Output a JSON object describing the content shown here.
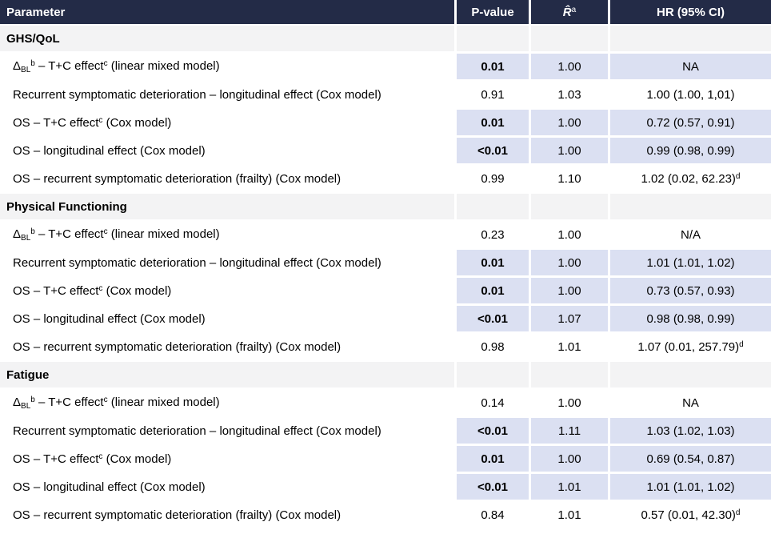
{
  "header": {
    "parameter": "Parameter",
    "p_value": "P-value",
    "r_hat": "R̂",
    "r_hat_sup": "a",
    "hr_ci": "HR (95% CI)"
  },
  "colors": {
    "header_bg": "#232b47",
    "header_text": "#ffffff",
    "section_bg": "#f3f3f4",
    "highlight_bg": "#dbe0f2",
    "body_bg": "#ffffff",
    "text": "#000000"
  },
  "sections": [
    {
      "title": "GHS/QoL",
      "rows": [
        {
          "param_parts": [
            [
              "Δ",
              "n"
            ],
            [
              "BL",
              "sub"
            ],
            [
              "b",
              "sup"
            ],
            [
              " – T+C effect",
              "n"
            ],
            [
              "c",
              "sup"
            ],
            [
              " (linear mixed model)",
              "n"
            ]
          ],
          "p": "0.01",
          "p_bold": true,
          "r": "1.00",
          "hr": "NA",
          "hr_sup": "",
          "highlight": true
        },
        {
          "param_parts": [
            [
              "Recurrent symptomatic deterioration – longitudinal effect (Cox model)",
              "n"
            ]
          ],
          "p": "0.91",
          "p_bold": false,
          "r": "1.03",
          "hr": "1.00 (1.00, 1,01)",
          "hr_sup": "",
          "highlight": false
        },
        {
          "param_parts": [
            [
              "OS – T+C effect",
              "n"
            ],
            [
              "c",
              "sup"
            ],
            [
              " (Cox model)",
              "n"
            ]
          ],
          "p": "0.01",
          "p_bold": true,
          "r": "1.00",
          "hr": "0.72 (0.57, 0.91)",
          "hr_sup": "",
          "highlight": true
        },
        {
          "param_parts": [
            [
              "OS – longitudinal effect (Cox model)",
              "n"
            ]
          ],
          "p": "<0.01",
          "p_bold": true,
          "r": "1.00",
          "hr": "0.99 (0.98, 0.99)",
          "hr_sup": "",
          "highlight": true
        },
        {
          "param_parts": [
            [
              "OS – recurrent symptomatic deterioration (frailty) (Cox model)",
              "n"
            ]
          ],
          "p": "0.99",
          "p_bold": false,
          "r": "1.10",
          "hr": "1.02 (0.02, 62.23)",
          "hr_sup": "d",
          "highlight": false
        }
      ]
    },
    {
      "title": "Physical Functioning",
      "rows": [
        {
          "param_parts": [
            [
              "Δ",
              "n"
            ],
            [
              "BL",
              "sub"
            ],
            [
              "b",
              "sup"
            ],
            [
              " – T+C effect",
              "n"
            ],
            [
              "c",
              "sup"
            ],
            [
              " (linear mixed model)",
              "n"
            ]
          ],
          "p": "0.23",
          "p_bold": false,
          "r": "1.00",
          "hr": "N/A",
          "hr_sup": "",
          "highlight": false
        },
        {
          "param_parts": [
            [
              "Recurrent symptomatic deterioration – longitudinal effect (Cox model)",
              "n"
            ]
          ],
          "p": "0.01",
          "p_bold": true,
          "r": "1.00",
          "hr": "1.01 (1.01, 1.02)",
          "hr_sup": "",
          "highlight": true
        },
        {
          "param_parts": [
            [
              "OS – T+C effect",
              "n"
            ],
            [
              "c",
              "sup"
            ],
            [
              " (Cox model)",
              "n"
            ]
          ],
          "p": "0.01",
          "p_bold": true,
          "r": "1.00",
          "hr": "0.73 (0.57, 0.93)",
          "hr_sup": "",
          "highlight": true
        },
        {
          "param_parts": [
            [
              "OS – longitudinal effect (Cox model)",
              "n"
            ]
          ],
          "p": "<0.01",
          "p_bold": true,
          "r": "1.07",
          "hr": "0.98 (0.98, 0.99)",
          "hr_sup": "",
          "highlight": true
        },
        {
          "param_parts": [
            [
              "OS – recurrent symptomatic deterioration (frailty) (Cox model)",
              "n"
            ]
          ],
          "p": "0.98",
          "p_bold": false,
          "r": "1.01",
          "hr": "1.07 (0.01, 257.79)",
          "hr_sup": "d",
          "highlight": false
        }
      ]
    },
    {
      "title": "Fatigue",
      "rows": [
        {
          "param_parts": [
            [
              "Δ",
              "n"
            ],
            [
              "BL",
              "sub"
            ],
            [
              "b",
              "sup"
            ],
            [
              " – T+C effect",
              "n"
            ],
            [
              "c",
              "sup"
            ],
            [
              " (linear mixed model)",
              "n"
            ]
          ],
          "p": "0.14",
          "p_bold": false,
          "r": "1.00",
          "hr": "NA",
          "hr_sup": "",
          "highlight": false
        },
        {
          "param_parts": [
            [
              "Recurrent symptomatic deterioration – longitudinal effect (Cox model)",
              "n"
            ]
          ],
          "p": "<0.01",
          "p_bold": true,
          "r": "1.11",
          "hr": "1.03 (1.02, 1.03)",
          "hr_sup": "",
          "highlight": true
        },
        {
          "param_parts": [
            [
              "OS – T+C effect",
              "n"
            ],
            [
              "c",
              "sup"
            ],
            [
              " (Cox model)",
              "n"
            ]
          ],
          "p": "0.01",
          "p_bold": true,
          "r": "1.00",
          "hr": "0.69 (0.54, 0.87)",
          "hr_sup": "",
          "highlight": true
        },
        {
          "param_parts": [
            [
              "OS – longitudinal effect (Cox model)",
              "n"
            ]
          ],
          "p": "<0.01",
          "p_bold": true,
          "r": "1.01",
          "hr": "1.01 (1.01, 1.02)",
          "hr_sup": "",
          "highlight": true
        },
        {
          "param_parts": [
            [
              "OS – recurrent symptomatic deterioration (frailty) (Cox model)",
              "n"
            ]
          ],
          "p": "0.84",
          "p_bold": false,
          "r": "1.01",
          "hr": "0.57 (0.01, 42.30)",
          "hr_sup": "d",
          "highlight": false
        }
      ]
    }
  ]
}
